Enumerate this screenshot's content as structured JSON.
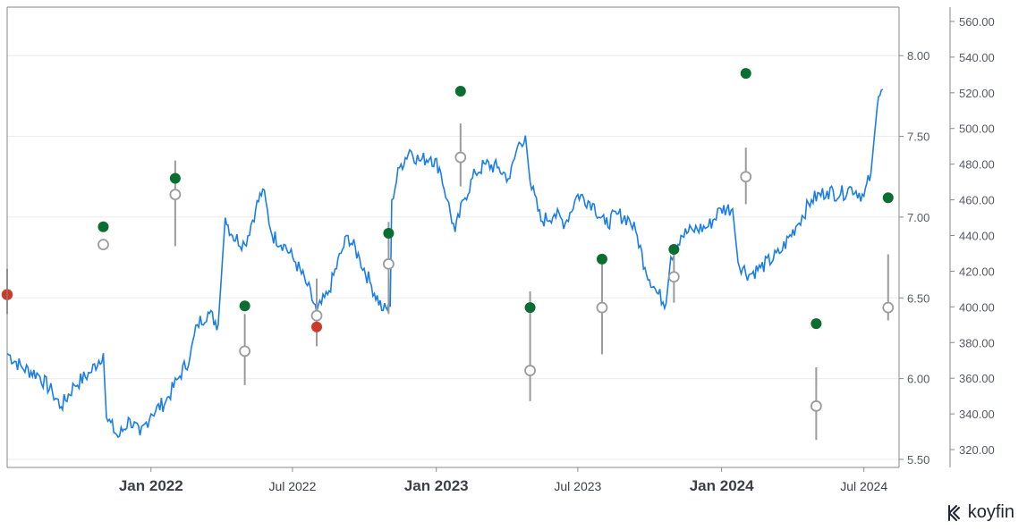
{
  "brand": {
    "name": "koyfin",
    "icon": "koyfin-logo-icon"
  },
  "colors": {
    "price_line": "#1a7ee6",
    "beat": "#0a6e31",
    "miss": "#cc3b2a",
    "estimate": "#9b9b9b",
    "grid": "#ebebeb",
    "axis": "#8a8a8a"
  },
  "chart_data": {
    "type": "line",
    "x_axis": {
      "range": [
        "2021-07-01",
        "2024-08-15"
      ],
      "ticks": [
        {
          "date": "2022-01-01",
          "label": "Jan 2022",
          "major": true
        },
        {
          "date": "2022-07-01",
          "label": "Jul 2022",
          "major": false
        },
        {
          "date": "2023-01-01",
          "label": "Jan 2023",
          "major": true
        },
        {
          "date": "2023-07-01",
          "label": "Jul 2023",
          "major": false
        },
        {
          "date": "2024-01-01",
          "label": "Jan 2024",
          "major": true
        },
        {
          "date": "2024-07-01",
          "label": "Jul 2024",
          "major": false
        }
      ]
    },
    "eps_axis": {
      "range": [
        5.45,
        8.3
      ],
      "ticks": [
        "8.00",
        "7.50",
        "7.00",
        "6.50",
        "6.00",
        "5.50"
      ]
    },
    "price_axis": {
      "range": [
        310,
        568
      ],
      "ticks": [
        "560.00",
        "540.00",
        "520.00",
        "500.00",
        "480.00",
        "460.00",
        "440.00",
        "420.00",
        "400.00",
        "380.00",
        "360.00",
        "340.00",
        "320.00"
      ]
    },
    "grid": true,
    "series": [
      {
        "type": "line",
        "axis": "price",
        "points": [
          [
            "2021-07-01",
            374
          ],
          [
            "2021-07-20",
            366
          ],
          [
            "2021-08-10",
            362
          ],
          [
            "2021-08-28",
            352
          ],
          [
            "2021-09-08",
            344
          ],
          [
            "2021-09-25",
            356
          ],
          [
            "2021-10-15",
            363
          ],
          [
            "2021-11-01",
            374
          ],
          [
            "2021-11-05",
            338
          ],
          [
            "2021-11-20",
            327
          ],
          [
            "2021-12-05",
            337
          ],
          [
            "2021-12-18",
            328
          ],
          [
            "2022-01-01",
            340
          ],
          [
            "2022-01-20",
            347
          ],
          [
            "2022-02-05",
            360
          ],
          [
            "2022-02-20",
            372
          ],
          [
            "2022-03-01",
            390
          ],
          [
            "2022-03-15",
            397
          ],
          [
            "2022-03-28",
            390
          ],
          [
            "2022-04-06",
            450
          ],
          [
            "2022-04-15",
            440
          ],
          [
            "2022-05-01",
            435
          ],
          [
            "2022-05-15",
            455
          ],
          [
            "2022-05-24",
            466
          ],
          [
            "2022-06-05",
            440
          ],
          [
            "2022-06-20",
            435
          ],
          [
            "2022-07-05",
            425
          ],
          [
            "2022-07-20",
            412
          ],
          [
            "2022-08-01",
            397
          ],
          [
            "2022-08-15",
            407
          ],
          [
            "2022-09-01",
            430
          ],
          [
            "2022-09-10",
            440
          ],
          [
            "2022-09-25",
            427
          ],
          [
            "2022-10-10",
            412
          ],
          [
            "2022-10-25",
            398
          ],
          [
            "2022-11-03",
            400
          ],
          [
            "2022-11-05",
            460
          ],
          [
            "2022-11-15",
            478
          ],
          [
            "2022-11-28",
            488
          ],
          [
            "2022-12-10",
            482
          ],
          [
            "2022-12-25",
            484
          ],
          [
            "2023-01-05",
            478
          ],
          [
            "2023-01-15",
            460
          ],
          [
            "2023-01-25",
            442
          ],
          [
            "2023-02-05",
            460
          ],
          [
            "2023-02-20",
            475
          ],
          [
            "2023-03-05",
            480
          ],
          [
            "2023-03-20",
            478
          ],
          [
            "2023-04-05",
            472
          ],
          [
            "2023-04-15",
            490
          ],
          [
            "2023-04-25",
            496
          ],
          [
            "2023-05-01",
            470
          ],
          [
            "2023-05-15",
            448
          ],
          [
            "2023-06-01",
            452
          ],
          [
            "2023-06-15",
            447
          ],
          [
            "2023-07-01",
            463
          ],
          [
            "2023-07-20",
            458
          ],
          [
            "2023-08-05",
            446
          ],
          [
            "2023-08-20",
            452
          ],
          [
            "2023-09-05",
            449
          ],
          [
            "2023-09-15",
            440
          ],
          [
            "2023-09-25",
            422
          ],
          [
            "2023-10-10",
            408
          ],
          [
            "2023-10-22",
            402
          ],
          [
            "2023-10-28",
            428
          ],
          [
            "2023-11-10",
            440
          ],
          [
            "2023-11-25",
            443
          ],
          [
            "2023-12-15",
            445
          ],
          [
            "2023-12-31",
            455
          ],
          [
            "2024-01-15",
            455
          ],
          [
            "2024-01-22",
            425
          ],
          [
            "2024-02-05",
            418
          ],
          [
            "2024-02-20",
            422
          ],
          [
            "2024-03-15",
            430
          ],
          [
            "2024-04-05",
            445
          ],
          [
            "2024-04-25",
            460
          ],
          [
            "2024-05-15",
            465
          ],
          [
            "2024-06-01",
            463
          ],
          [
            "2024-06-15",
            467
          ],
          [
            "2024-07-01",
            462
          ],
          [
            "2024-07-10",
            475
          ],
          [
            "2024-07-18",
            512
          ],
          [
            "2024-07-25",
            522
          ]
        ]
      },
      {
        "type": "scatter",
        "name_ref": "actual",
        "axis": "eps",
        "points": [
          {
            "date": "2021-07-01",
            "eps": 6.52,
            "status": "miss"
          },
          {
            "date": "2021-11-01",
            "eps": 6.94,
            "status": "beat"
          },
          {
            "date": "2022-02-01",
            "eps": 7.24,
            "status": "beat"
          },
          {
            "date": "2022-05-01",
            "eps": 6.45,
            "status": "beat"
          },
          {
            "date": "2022-08-01",
            "eps": 6.32,
            "status": "miss"
          },
          {
            "date": "2022-11-01",
            "eps": 6.9,
            "status": "beat"
          },
          {
            "date": "2023-02-01",
            "eps": 7.78,
            "status": "beat"
          },
          {
            "date": "2023-05-01",
            "eps": 6.44,
            "status": "beat"
          },
          {
            "date": "2023-08-01",
            "eps": 6.74,
            "status": "beat"
          },
          {
            "date": "2023-11-01",
            "eps": 6.8,
            "status": "beat"
          },
          {
            "date": "2024-02-01",
            "eps": 7.89,
            "status": "beat"
          },
          {
            "date": "2024-05-01",
            "eps": 6.34,
            "status": "beat"
          },
          {
            "date": "2024-08-01",
            "eps": 7.12,
            "status": "beat"
          }
        ]
      },
      {
        "type": "scatter",
        "name_ref": "estimate",
        "axis": "eps",
        "points": [
          {
            "date": "2021-07-01",
            "eps": 6.52,
            "low": 6.4,
            "high": 6.68
          },
          {
            "date": "2021-11-01",
            "eps": 6.83,
            "low": 6.8,
            "high": 6.86
          },
          {
            "date": "2022-02-01",
            "eps": 7.14,
            "low": 6.82,
            "high": 7.35
          },
          {
            "date": "2022-05-01",
            "eps": 6.17,
            "low": 5.96,
            "high": 6.4
          },
          {
            "date": "2022-08-01",
            "eps": 6.39,
            "low": 6.2,
            "high": 6.62
          },
          {
            "date": "2022-11-01",
            "eps": 6.71,
            "low": 6.4,
            "high": 6.97
          },
          {
            "date": "2023-02-01",
            "eps": 7.37,
            "low": 7.19,
            "high": 7.58
          },
          {
            "date": "2023-05-01",
            "eps": 6.05,
            "low": 5.86,
            "high": 6.54
          },
          {
            "date": "2023-08-01",
            "eps": 6.44,
            "low": 6.15,
            "high": 6.72
          },
          {
            "date": "2023-11-01",
            "eps": 6.63,
            "low": 6.47,
            "high": 6.8
          },
          {
            "date": "2024-02-01",
            "eps": 7.25,
            "low": 7.08,
            "high": 7.43
          },
          {
            "date": "2024-05-01",
            "eps": 5.83,
            "low": 5.62,
            "high": 6.07
          },
          {
            "date": "2024-08-01",
            "eps": 6.44,
            "low": 6.36,
            "high": 6.77
          }
        ]
      }
    ]
  }
}
